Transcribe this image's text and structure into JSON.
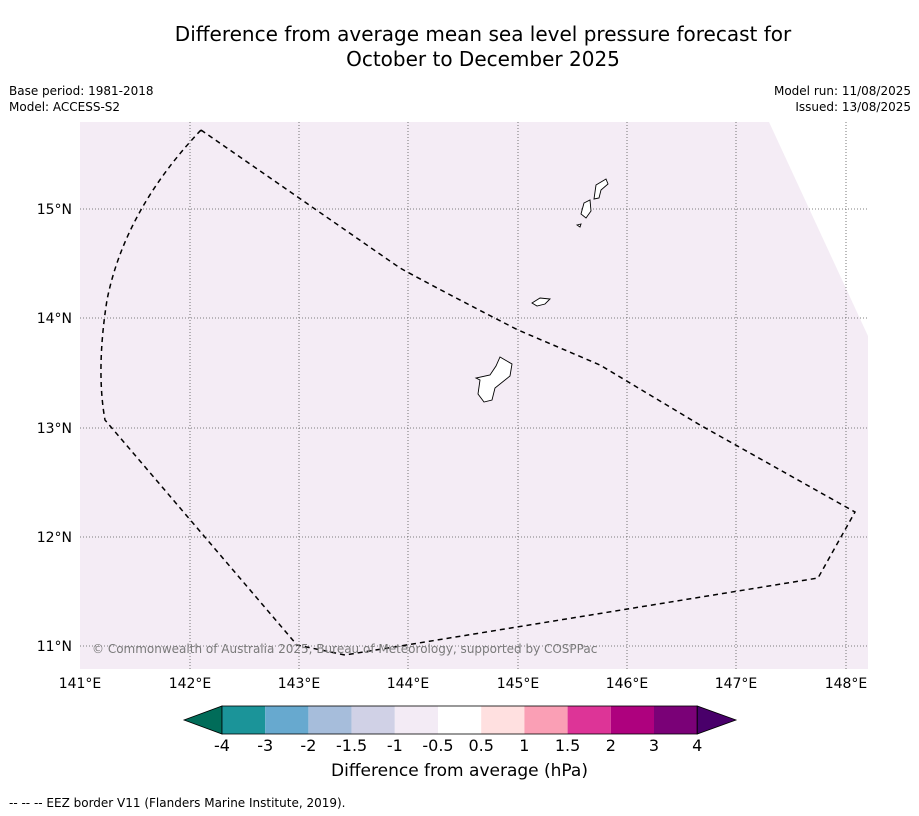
{
  "title_line1": "Difference from average mean sea level pressure forecast for",
  "title_line2": "October to December 2025",
  "meta": {
    "base_period": "Base period: 1981-2018",
    "model": "Model: ACCESS-S2",
    "model_run": "Model run: 11/08/2025",
    "issued": "Issued: 13/08/2025"
  },
  "map": {
    "lat_labels": [
      "15°N",
      "14°N",
      "13°N",
      "12°N",
      "11°N"
    ],
    "lon_labels": [
      "141°E",
      "142°E",
      "143°E",
      "144°E",
      "145°E",
      "146°E",
      "147°E",
      "148°E"
    ],
    "background_color": "#f4ecf5",
    "copyright": "© Commonwealth of Australia 2025, Bureau of Meteorology, supported by COSPPac"
  },
  "colorbar": {
    "labels": [
      "-4",
      "-3",
      "-2",
      "-1.5",
      "-1",
      "-0.5",
      "0.5",
      "1",
      "1.5",
      "2",
      "3",
      "4"
    ],
    "colors": [
      "#016c59",
      "#1b9499",
      "#67a9cf",
      "#a6bddb",
      "#d0d1e6",
      "#f3ebf5",
      "#ffffff",
      "#ffe0e0",
      "#fa9fb5",
      "#dd3497",
      "#ae017e",
      "#7a0177",
      "#49006a"
    ],
    "title": "Difference from average (hPa)"
  },
  "footnote": "--  --  -- EEZ border V11 (Flanders Marine Institute, 2019)."
}
